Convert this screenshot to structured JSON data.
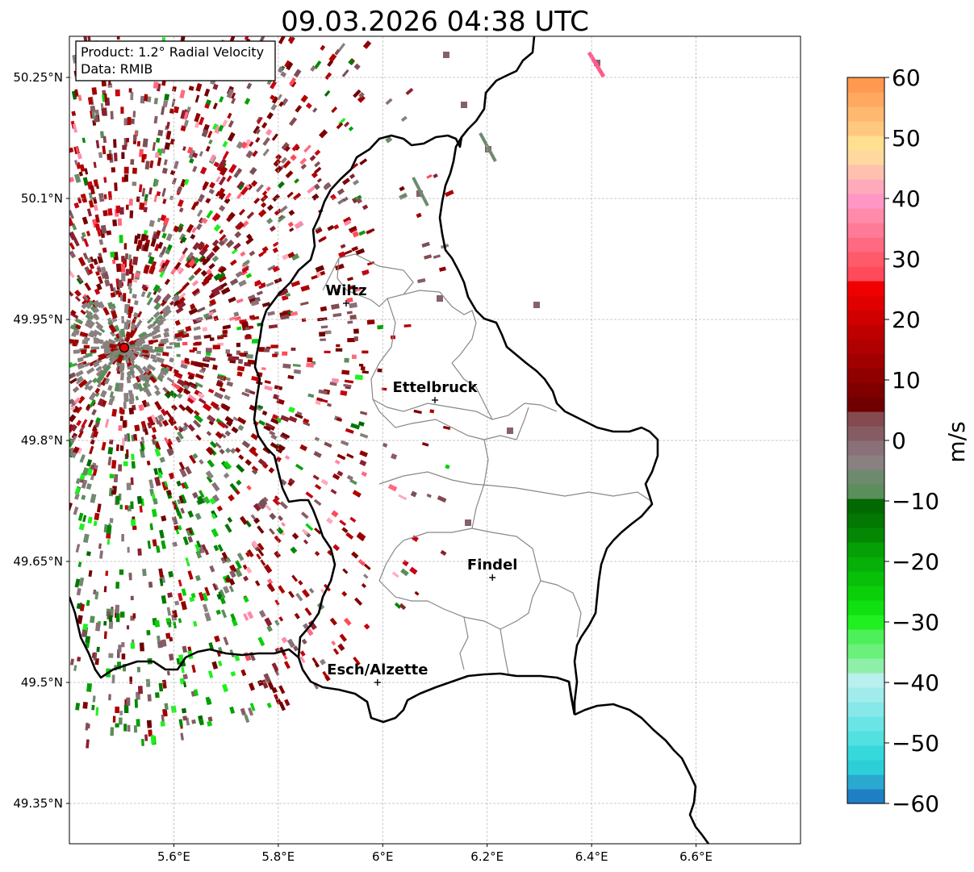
{
  "title": "09.03.2026 04:38 UTC",
  "info_box": {
    "product": "Product: 1.2° Radial Velocity",
    "data_source": "Data: RMIB"
  },
  "axes": {
    "lat_ticks": [
      "50.25°N",
      "50.1°N",
      "49.95°N",
      "49.8°N",
      "49.65°N",
      "49.5°N",
      "49.35°N"
    ],
    "lat_values": [
      50.25,
      50.1,
      49.95,
      49.8,
      49.65,
      49.5,
      49.35
    ],
    "lon_ticks": [
      "5.6°E",
      "5.8°E",
      "6°E",
      "6.2°E",
      "6.4°E",
      "6.6°E"
    ],
    "lon_values": [
      5.6,
      5.8,
      6.0,
      6.2,
      6.4,
      6.6
    ],
    "lon_range": [
      5.4,
      6.8
    ],
    "lat_range": [
      49.3,
      50.3
    ]
  },
  "cities": [
    {
      "name": "Wiltz",
      "lon": 5.93,
      "lat": 49.97
    },
    {
      "name": "Ettelbruck",
      "lon": 6.1,
      "lat": 49.85
    },
    {
      "name": "Findel",
      "lon": 6.21,
      "lat": 49.63
    },
    {
      "name": "Esch/Alzette",
      "lon": 5.99,
      "lat": 49.5
    }
  ],
  "radar_site": {
    "lon": 5.505,
    "lat": 49.915
  },
  "colorbar": {
    "label": "m/s",
    "min": -60,
    "max": 60,
    "ticks": [
      "60",
      "50",
      "40",
      "30",
      "20",
      "10",
      "0",
      "−10",
      "−20",
      "−30",
      "−40",
      "−50",
      "−60"
    ],
    "tick_values": [
      60,
      50,
      40,
      30,
      20,
      10,
      0,
      -10,
      -20,
      -30,
      -40,
      -50,
      -60
    ],
    "colors": [
      "#1f7fc4",
      "#2aa8d0",
      "#2ccfd8",
      "#36d8dc",
      "#52e0e0",
      "#6ae4e4",
      "#86e8e8",
      "#a0ecec",
      "#b8f0ee",
      "#8ef0a8",
      "#6cf07c",
      "#4ef05a",
      "#20f020",
      "#10e010",
      "#0ad00a",
      "#08c008",
      "#06b006",
      "#05a005",
      "#048804",
      "#037803",
      "#026802",
      "#5a8e5a",
      "#6e8a6e",
      "#8a8080",
      "#8a7078",
      "#865c64",
      "#844a50",
      "#700000",
      "#800000",
      "#900000",
      "#a00000",
      "#b00000",
      "#c00000",
      "#d00000",
      "#e00000",
      "#f00000",
      "#ff4a5a",
      "#ff5a6a",
      "#ff6a80",
      "#ff7a96",
      "#ff8aaa",
      "#ff96c6",
      "#ffaabb",
      "#ffc0b0",
      "#ffd8a0",
      "#ffe090",
      "#ffc880",
      "#ffb870",
      "#ffa860",
      "#ff9850"
    ]
  }
}
